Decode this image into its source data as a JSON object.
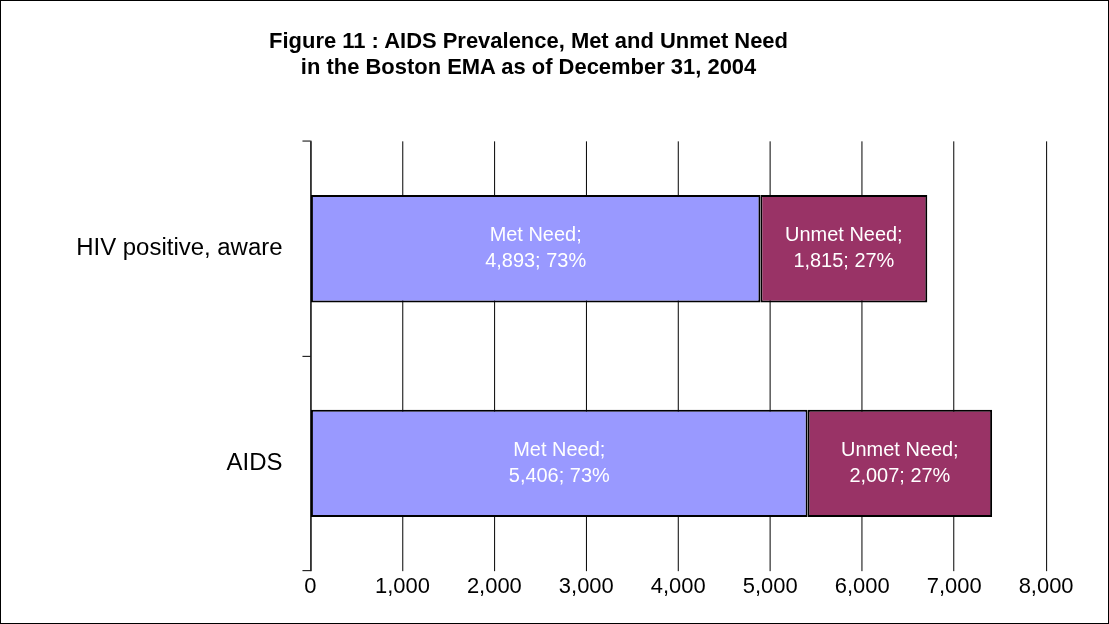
{
  "chart_data": {
    "type": "bar",
    "orientation": "horizontal",
    "stacked": true,
    "title": "Figure 11 : AIDS Prevalence, Met and Unmet Need\nin the Boston EMA as of December 31, 2004",
    "categories": [
      "HIV positive, aware",
      "AIDS"
    ],
    "series": [
      {
        "color": "#9999ff",
        "values": [
          4893,
          5406
        ],
        "value_labels": [
          "Met Need; 4,893; 73%",
          "Met Need; 5,406; 73%"
        ]
      },
      {
        "color": "#993366",
        "values": [
          1815,
          2007
        ],
        "value_labels": [
          "Unmet Need; 1,815; 27%",
          "Unmet Need; 2,007; 27%"
        ]
      }
    ],
    "xlim": [
      0,
      8000
    ],
    "xticks": [
      {
        "value": 0,
        "label": "0"
      },
      {
        "value": 1000,
        "label": "1,000"
      },
      {
        "value": 2000,
        "label": "2,000"
      },
      {
        "value": 3000,
        "label": "3,000"
      },
      {
        "value": 4000,
        "label": "4,000"
      },
      {
        "value": 5000,
        "label": "5,000"
      },
      {
        "value": 6000,
        "label": "6,000"
      },
      {
        "value": 7000,
        "label": "7,000"
      },
      {
        "value": 8000,
        "label": "8,000"
      }
    ],
    "grid": "x",
    "legend": false
  }
}
